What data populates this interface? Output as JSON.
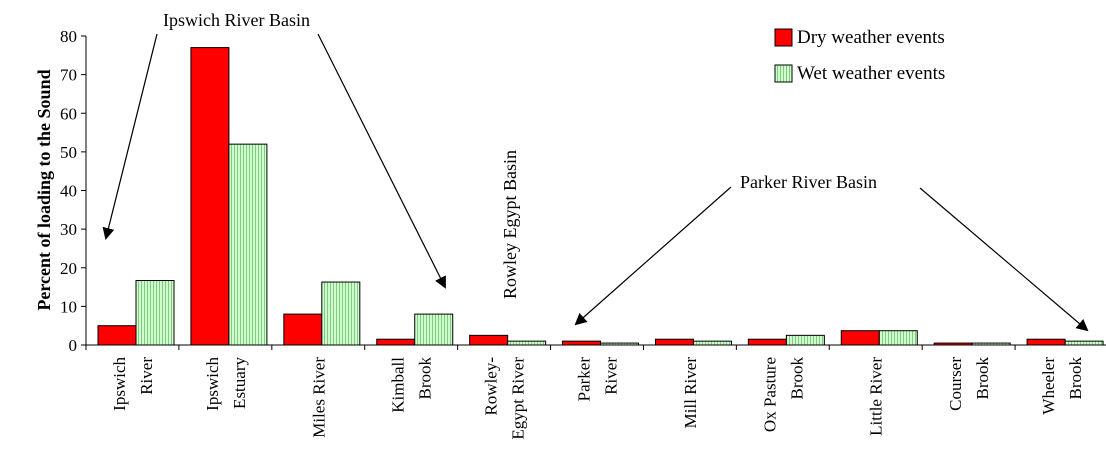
{
  "chart_data": {
    "type": "bar",
    "ylabel": "Percent of loading to the Sound",
    "ylim": [
      0,
      80
    ],
    "yticks": [
      0,
      10,
      20,
      30,
      40,
      50,
      60,
      70,
      80
    ],
    "categories": [
      [
        "Ipswich",
        "River"
      ],
      [
        "Ipswich",
        "Estuary"
      ],
      [
        "Miles River"
      ],
      [
        "Kimball",
        "Brook"
      ],
      [
        "Rowley-",
        "Egypt River"
      ],
      [
        "Parker",
        "River"
      ],
      [
        "Mill River"
      ],
      [
        "Ox Pasture",
        "Brook"
      ],
      [
        "Little River"
      ],
      [
        "Courser",
        "Brook"
      ],
      [
        "Wheeler",
        "Brook"
      ]
    ],
    "series": [
      {
        "name": "Dry weather events",
        "color": "#ff0000",
        "values": [
          5,
          77,
          8,
          1.5,
          2.5,
          1,
          1.5,
          1.5,
          3.7,
          0.5,
          1.5
        ]
      },
      {
        "name": "Wet weather events",
        "color": "#ccffcc",
        "values": [
          16.7,
          52,
          16.3,
          8,
          1,
          0.5,
          1,
          2.5,
          3.7,
          0.5,
          1
        ]
      }
    ],
    "legend_position": "top-right",
    "annotations": [
      {
        "text": "Ipswich River Basin",
        "points_to": [
          "Ipswich River",
          "Kimball Brook"
        ]
      },
      {
        "text": "Parker River Basin",
        "points_to": [
          "Parker River",
          "Wheeler Brook"
        ]
      },
      {
        "text": "Rowley Egypt Basin",
        "orientation": "vertical"
      }
    ]
  }
}
